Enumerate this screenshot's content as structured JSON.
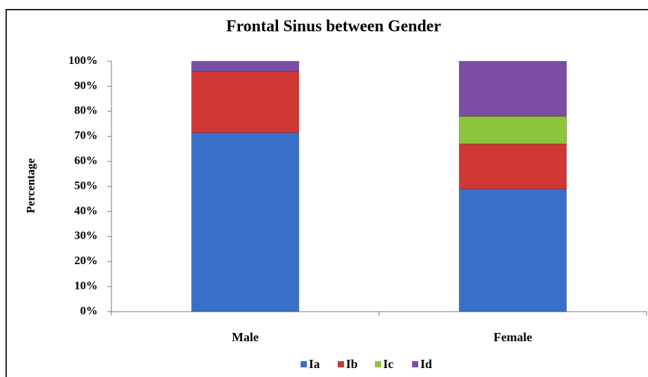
{
  "chart_data": {
    "type": "stacked_bar",
    "title": "Frontal Sinus between Gender",
    "y_label": "Percentage",
    "categories": [
      "Male",
      "Female"
    ],
    "series": [
      {
        "name": "Ia",
        "color": "#3a6fc8",
        "values": [
          71.5,
          49
        ]
      },
      {
        "name": "Ib",
        "color": "#cf3734",
        "values": [
          24.5,
          18
        ]
      },
      {
        "name": "Ic",
        "color": "#8cc43c",
        "values": [
          0,
          11
        ]
      },
      {
        "name": "Id",
        "color": "#7a4ea3",
        "values": [
          4,
          22
        ]
      }
    ],
    "ylim": [
      0,
      100
    ],
    "yticks": [
      {
        "value": 0,
        "label": "0%"
      },
      {
        "value": 10,
        "label": "10%"
      },
      {
        "value": 20,
        "label": "20%"
      },
      {
        "value": 30,
        "label": "30%"
      },
      {
        "value": 40,
        "label": "40%"
      },
      {
        "value": 50,
        "label": "50%"
      },
      {
        "value": 60,
        "label": "60%"
      },
      {
        "value": 70,
        "label": "70%"
      },
      {
        "value": 80,
        "label": "80%"
      },
      {
        "value": 90,
        "label": "90%"
      },
      {
        "value": 100,
        "label": "100%"
      }
    ],
    "legend": "bottom"
  }
}
